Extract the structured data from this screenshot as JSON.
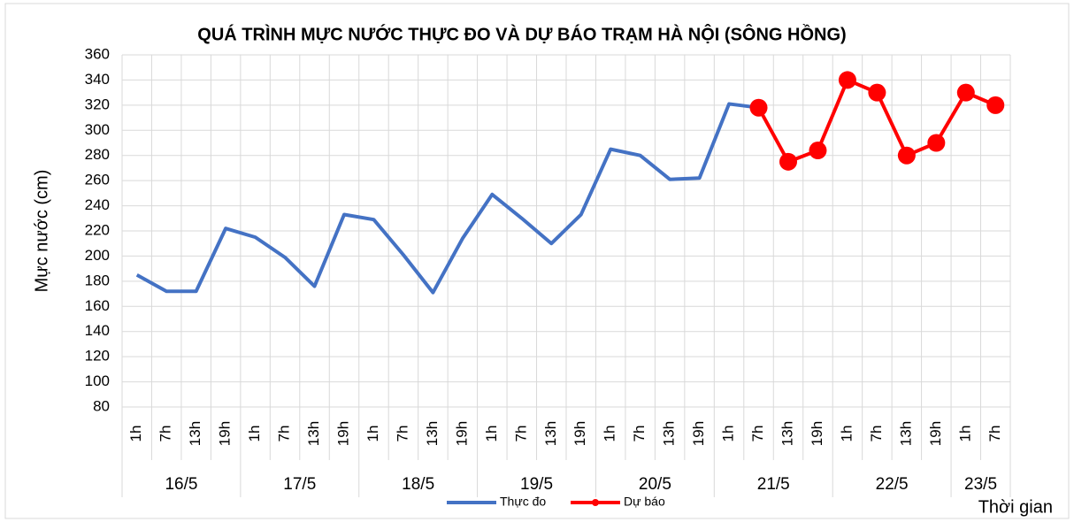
{
  "chart_data": {
    "type": "line",
    "title": "QUÁ TRÌNH MỰC NƯỚC THỰC ĐO VÀ DỰ BÁO TRẠM HÀ NỘI (SÔNG HỒNG)",
    "y_label": "Mực nước (cm)",
    "x_label": "Thời gian",
    "categories": [
      "1h",
      "7h",
      "13h",
      "19h",
      "1h",
      "7h",
      "13h",
      "19h",
      "1h",
      "7h",
      "13h",
      "19h",
      "1h",
      "7h",
      "13h",
      "19h",
      "1h",
      "7h",
      "13h",
      "19h",
      "1h",
      "7h",
      "13h",
      "19h",
      "1h",
      "7h",
      "13h",
      "19h",
      "1h",
      "7h"
    ],
    "groups": [
      "16/5",
      "17/5",
      "18/5",
      "19/5",
      "20/5",
      "21/5",
      "22/5",
      "23/5"
    ],
    "series": [
      {
        "name": "Thực đo",
        "color": "#4472c4",
        "markers": false,
        "values": [
          185,
          172,
          172,
          222,
          215,
          199,
          176,
          233,
          229,
          201,
          171,
          214,
          249,
          230,
          210,
          233,
          285,
          280,
          261,
          262,
          321,
          318,
          null,
          null,
          null,
          null,
          null,
          null,
          null,
          null
        ]
      },
      {
        "name": "Dự báo",
        "color": "#ff0000",
        "markers": true,
        "values": [
          null,
          null,
          null,
          null,
          null,
          null,
          null,
          null,
          null,
          null,
          null,
          null,
          null,
          null,
          null,
          null,
          null,
          null,
          null,
          null,
          null,
          318,
          275,
          284,
          340,
          330,
          280,
          290,
          330,
          320
        ]
      }
    ],
    "ylim": [
      80,
      360
    ],
    "yticks": [
      80,
      100,
      120,
      140,
      160,
      180,
      200,
      220,
      240,
      260,
      280,
      300,
      320,
      340,
      360
    ],
    "grid": true,
    "legend": "bottom"
  }
}
